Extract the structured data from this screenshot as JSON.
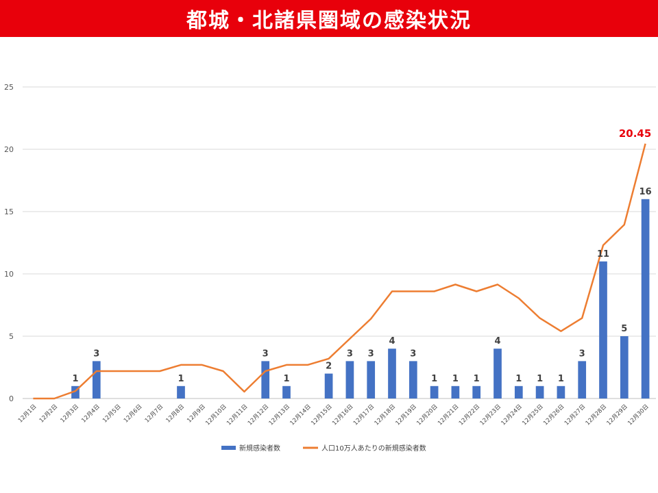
{
  "page_title": "都城・北諸県圏域の感染状況",
  "chart_data": {
    "type": "bar",
    "categories": [
      "12月1日",
      "12月2日",
      "12月3日",
      "12月4日",
      "12月5日",
      "12月6日",
      "12月7日",
      "12月8日",
      "12月9日",
      "12月10日",
      "12月11日",
      "12月12日",
      "12月13日",
      "12月14日",
      "12月15日",
      "12月16日",
      "12月17日",
      "12月18日",
      "12月19日",
      "12月20日",
      "12月21日",
      "12月22日",
      "12月23日",
      "12月24日",
      "12月25日",
      "12月26日",
      "12月27日",
      "12月28日",
      "12月29日",
      "12月30日"
    ],
    "series": [
      {
        "name": "新規感染者数",
        "type": "bar",
        "color": "#4472c4",
        "values": [
          0,
          0,
          1,
          3,
          0,
          0,
          0,
          1,
          0,
          0,
          0,
          3,
          1,
          0,
          2,
          3,
          3,
          4,
          3,
          1,
          1,
          1,
          4,
          1,
          1,
          1,
          3,
          11,
          5,
          16
        ]
      },
      {
        "name": "人口10万人あたりの新規感染者数",
        "type": "line",
        "color": "#ed7d31",
        "values": [
          0,
          0,
          0.6,
          2.2,
          2.2,
          2.2,
          2.2,
          2.7,
          2.7,
          2.2,
          0.55,
          2.2,
          2.7,
          2.7,
          3.2,
          4.8,
          6.4,
          8.6,
          8.6,
          8.6,
          9.15,
          8.6,
          9.15,
          8.05,
          6.45,
          5.4,
          6.45,
          12.3,
          13.95,
          20.45
        ]
      }
    ],
    "peak_label": "20.45",
    "ylim": [
      0,
      25
    ],
    "yticks": [
      "0",
      "5",
      "10",
      "15",
      "20",
      "25"
    ],
    "grid": true,
    "legend_position": "bottom"
  }
}
